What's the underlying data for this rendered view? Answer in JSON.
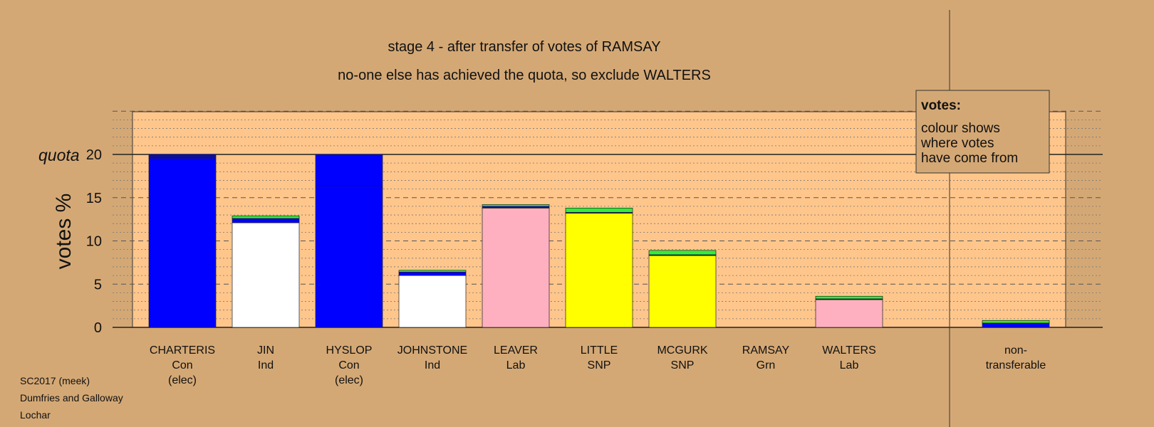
{
  "chart_data": {
    "type": "bar",
    "title": "stage 4 - after transfer of votes of RAMSAY",
    "subtitle": "no-one else has achieved the quota, so exclude WALTERS",
    "ylabel": "votes %",
    "quota_label": "quota",
    "quota": 20,
    "ylim": [
      0,
      25
    ],
    "yticks": [
      0,
      5,
      10,
      15,
      20
    ],
    "grid": "dotted minor lines every 1%, dashed major lines every 5%",
    "legend": {
      "placement": "top-right",
      "title": "votes:",
      "lines": [
        "colour shows",
        "where votes",
        "have come from"
      ]
    },
    "categories": [
      {
        "name": "CHARTERIS",
        "party": "Con",
        "note": "(elec)"
      },
      {
        "name": "JIN",
        "party": "Ind",
        "note": ""
      },
      {
        "name": "HYSLOP",
        "party": "Con",
        "note": "(elec)"
      },
      {
        "name": "JOHNSTONE",
        "party": "Ind",
        "note": ""
      },
      {
        "name": "LEAVER",
        "party": "Lab",
        "note": ""
      },
      {
        "name": "LITTLE",
        "party": "SNP",
        "note": ""
      },
      {
        "name": "MCGURK",
        "party": "SNP",
        "note": ""
      },
      {
        "name": "RAMSAY",
        "party": "Grn",
        "note": ""
      },
      {
        "name": "WALTERS",
        "party": "Lab",
        "note": ""
      }
    ],
    "nontransferable_label": [
      "non-",
      "transferable"
    ],
    "stacks": [
      [
        {
          "value": 19.5,
          "color": "#0000ff"
        },
        {
          "value": 0.3,
          "color": "#0000ff"
        },
        {
          "value": 0.2,
          "color": "#0000ff"
        }
      ],
      [
        {
          "value": 12.1,
          "color": "#ffffff"
        },
        {
          "value": 0.5,
          "color": "#0000ff"
        },
        {
          "value": 0.3,
          "color": "#33ee33"
        }
      ],
      [
        {
          "value": 16.2,
          "color": "#0000ff"
        },
        {
          "value": 3.8,
          "color": "#0000ff"
        }
      ],
      [
        {
          "value": 6.0,
          "color": "#ffffff"
        },
        {
          "value": 0.4,
          "color": "#0000ff"
        },
        {
          "value": 0.2,
          "color": "#33ee33"
        }
      ],
      [
        {
          "value": 13.8,
          "color": "#ffb0c0"
        },
        {
          "value": 0.2,
          "color": "#0000ff"
        },
        {
          "value": 0.2,
          "color": "#33ee33"
        }
      ],
      [
        {
          "value": 13.2,
          "color": "#ffff00"
        },
        {
          "value": 0.1,
          "color": "#0000ff"
        },
        {
          "value": 0.5,
          "color": "#33ee33"
        }
      ],
      [
        {
          "value": 8.3,
          "color": "#ffff00"
        },
        {
          "value": 0.1,
          "color": "#0000ff"
        },
        {
          "value": 0.5,
          "color": "#33ee33"
        }
      ],
      [],
      [
        {
          "value": 3.2,
          "color": "#ffb0c0"
        },
        {
          "value": 0.1,
          "color": "#0000ff"
        },
        {
          "value": 0.3,
          "color": "#33ee33"
        }
      ]
    ],
    "nontransferable_stack": [
      {
        "value": 0.5,
        "color": "#0000ff"
      },
      {
        "value": 0.3,
        "color": "#33ee33"
      }
    ],
    "colors": {
      "background": "#d4a875",
      "plot_area": "#ffc68c",
      "con": "#0000ff",
      "ind": "#ffffff",
      "lab": "#ffb0c0",
      "snp": "#ffff00",
      "grn": "#33ee33"
    }
  },
  "footer": {
    "line1": "SC2017 (meek)",
    "line2": "Dumfries and Galloway",
    "line3": "Lochar"
  }
}
